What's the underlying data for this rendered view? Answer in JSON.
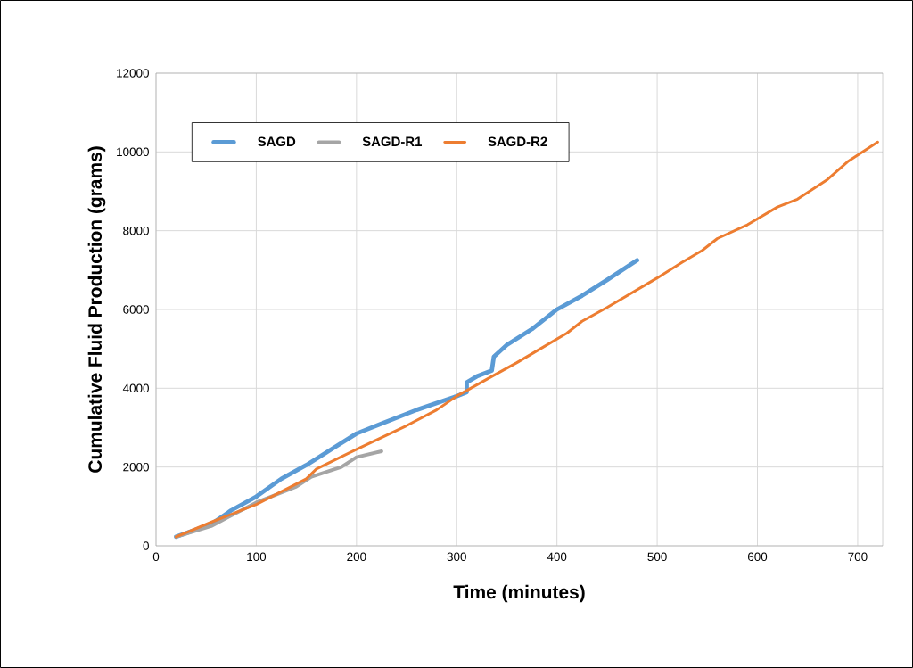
{
  "chart_data": {
    "type": "line",
    "xlabel": "Time (minutes)",
    "ylabel": "Cumulative Fluid Production (grams)",
    "xlim": [
      0,
      725
    ],
    "ylim": [
      0,
      12000
    ],
    "xticks": [
      0,
      100,
      200,
      300,
      400,
      500,
      600,
      700
    ],
    "yticks": [
      0,
      2000,
      4000,
      6000,
      8000,
      10000,
      12000
    ],
    "grid": true,
    "legend": "top left",
    "line_style": "solid",
    "marker": "none",
    "series": [
      {
        "name": "SAGD",
        "color": "#5b9bd5",
        "x": [
          20,
          55,
          75,
          100,
          125,
          150,
          175,
          200,
          225,
          260,
          300,
          310,
          310,
          320,
          335,
          337,
          350,
          375,
          400,
          425,
          450,
          480
        ],
        "values": [
          230,
          550,
          900,
          1250,
          1700,
          2050,
          2450,
          2850,
          3100,
          3450,
          3800,
          3900,
          4150,
          4300,
          4450,
          4800,
          5100,
          5500,
          6000,
          6350,
          6750,
          7250
        ]
      },
      {
        "name": "SAGD-R1",
        "color": "#a5a5a5",
        "x": [
          20,
          55,
          100,
          140,
          155,
          185,
          200,
          225
        ],
        "values": [
          230,
          500,
          1100,
          1500,
          1750,
          2000,
          2250,
          2400
        ]
      },
      {
        "name": "SAGD-R2",
        "color": "#ed7d31",
        "x": [
          20,
          55,
          100,
          150,
          160,
          200,
          250,
          280,
          300,
          335,
          360,
          380,
          410,
          425,
          450,
          500,
          525,
          545,
          560,
          590,
          620,
          640,
          670,
          690,
          720
        ],
        "values": [
          230,
          600,
          1050,
          1700,
          1950,
          2450,
          3050,
          3450,
          3800,
          4300,
          4650,
          4950,
          5400,
          5700,
          6050,
          6800,
          7200,
          7500,
          7800,
          8150,
          8600,
          8800,
          9300,
          9750,
          10250
        ]
      }
    ]
  }
}
